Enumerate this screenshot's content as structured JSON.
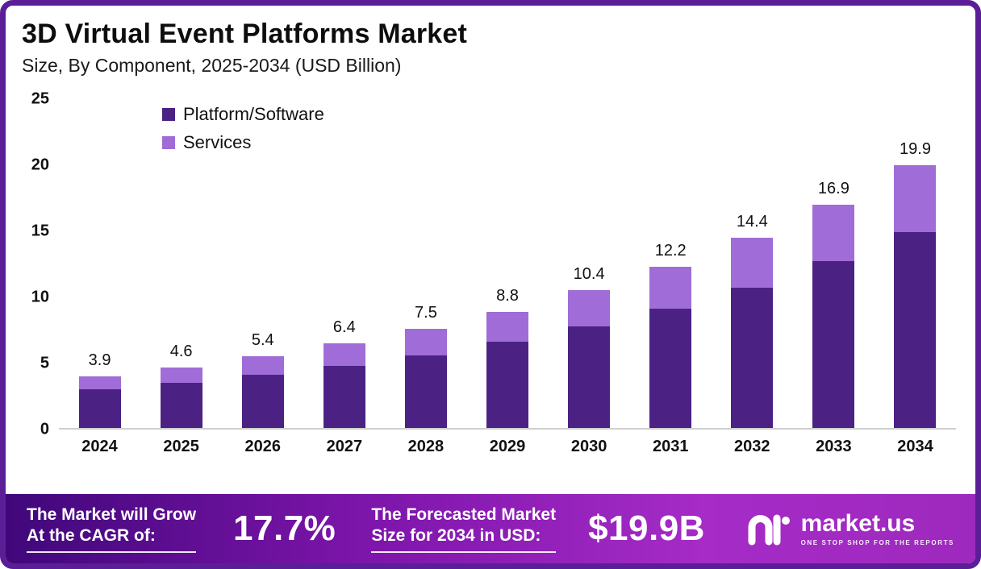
{
  "header": {
    "title": "3D Virtual Event Platforms Market",
    "subtitle": "Size, By Component, 2025-2034 (USD Billion)"
  },
  "chart_data": {
    "type": "bar",
    "stacked": true,
    "title": "3D Virtual Event Platforms Market",
    "subtitle": "Size, By Component, 2025-2034 (USD Billion)",
    "categories": [
      "2024",
      "2025",
      "2026",
      "2027",
      "2028",
      "2029",
      "2030",
      "2031",
      "2032",
      "2033",
      "2034"
    ],
    "series": [
      {
        "name": "Platform/Software",
        "color": "#4B2283",
        "values": [
          2.9,
          3.4,
          4.0,
          4.7,
          5.5,
          6.5,
          7.7,
          9.0,
          10.6,
          12.6,
          14.8
        ]
      },
      {
        "name": "Services",
        "color": "#A06CD8",
        "values": [
          1.0,
          1.2,
          1.4,
          1.7,
          2.0,
          2.3,
          2.7,
          3.2,
          3.8,
          4.3,
          5.1
        ]
      }
    ],
    "totals": [
      3.9,
      4.6,
      5.4,
      6.4,
      7.5,
      8.8,
      10.4,
      12.2,
      14.4,
      16.9,
      19.9
    ],
    "total_labels": [
      "3.9",
      "4.6",
      "5.4",
      "6.4",
      "7.5",
      "8.8",
      "10.4",
      "12.2",
      "14.4",
      "16.9",
      "19.9"
    ],
    "ylim": [
      0,
      25
    ],
    "yticks": [
      25,
      20,
      15,
      10,
      5,
      0
    ],
    "grid": false,
    "legend_position": "top-left"
  },
  "footer": {
    "cagr_label_line1": "The Market will Grow",
    "cagr_label_line2": "At the CAGR of:",
    "cagr_value": "17.7%",
    "forecast_label_line1": "The Forecasted Market",
    "forecast_label_line2": "Size for 2034 in USD:",
    "forecast_value": "$19.9B",
    "brand_name": "market.us",
    "brand_tagline": "ONE STOP SHOP FOR THE REPORTS"
  },
  "colors": {
    "platform": "#4B2283",
    "services": "#A06CD8",
    "frame_border": "#5B1E97",
    "footer_gradient_start": "#40077A",
    "footer_gradient_end": "#A62BC7"
  }
}
